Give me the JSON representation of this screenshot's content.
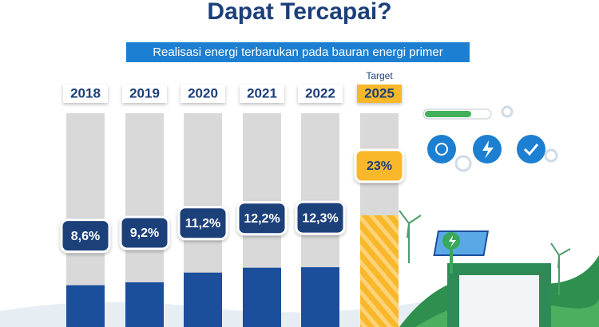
{
  "chart_data": {
    "type": "bar",
    "title": "Dapat Tercapai?",
    "subtitle": "Realisasi energi terbarukan pada bauran energi primer",
    "annotation": "Target",
    "categories": [
      "2018",
      "2019",
      "2020",
      "2021",
      "2022",
      "2025"
    ],
    "values": [
      8.6,
      9.2,
      11.2,
      12.2,
      12.3,
      23
    ],
    "value_labels": [
      "8,6%",
      "9,2%",
      "11,2%",
      "12,2%",
      "12,3%",
      "23%"
    ],
    "colors": [
      "#1b4f9c",
      "#1b4f9c",
      "#1b4f9c",
      "#1b4f9c",
      "#1b4f9c",
      "#f8b82a"
    ],
    "ylim": [
      0,
      44
    ]
  }
}
